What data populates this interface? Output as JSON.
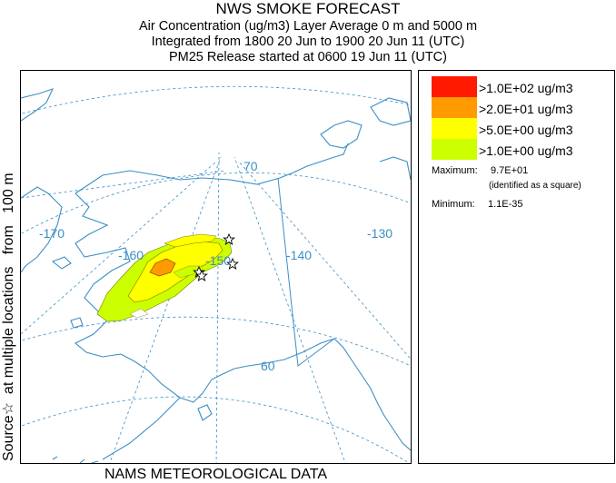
{
  "title": {
    "main": "NWS SMOKE FORECAST",
    "line2": "Air Concentration (ug/m3) Layer Average    0 m and  5000 m",
    "line3": "Integrated from 1800 20 Jun to 1900 20 Jun 11 (UTC)",
    "line4": "PM25 Release started at 0600 19 Jun 11 (UTC)"
  },
  "side_label": "Source☆  at multiple locations   from   100 m",
  "bottom_label": "NAMS METEOROLOGICAL DATA",
  "map": {
    "lat_labels": [
      "70",
      "60"
    ],
    "lon_labels": [
      "-170",
      "-160",
      "-150",
      "-140",
      "-130"
    ],
    "land_color": "#ffffff",
    "coast_color": "#3b8fc4",
    "grid_color": "#3b8fc4",
    "source_markers": 4
  },
  "legend": {
    "levels": [
      {
        "label": ">1.0E+02 ug/m3",
        "color": "#ff1a00"
      },
      {
        "label": ">2.0E+01 ug/m3",
        "color": "#ff9a00"
      },
      {
        "label": ">5.0E+00 ug/m3",
        "color": "#ffff00"
      },
      {
        "label": ">1.0E+00 ug/m3",
        "color": "#ccff00"
      }
    ],
    "maximum_label": "Maximum:",
    "maximum_value": "9.7E+01",
    "maximum_note": "(identified as a square)",
    "minimum_label": "Minimum:",
    "minimum_value": "1.1E-35"
  }
}
